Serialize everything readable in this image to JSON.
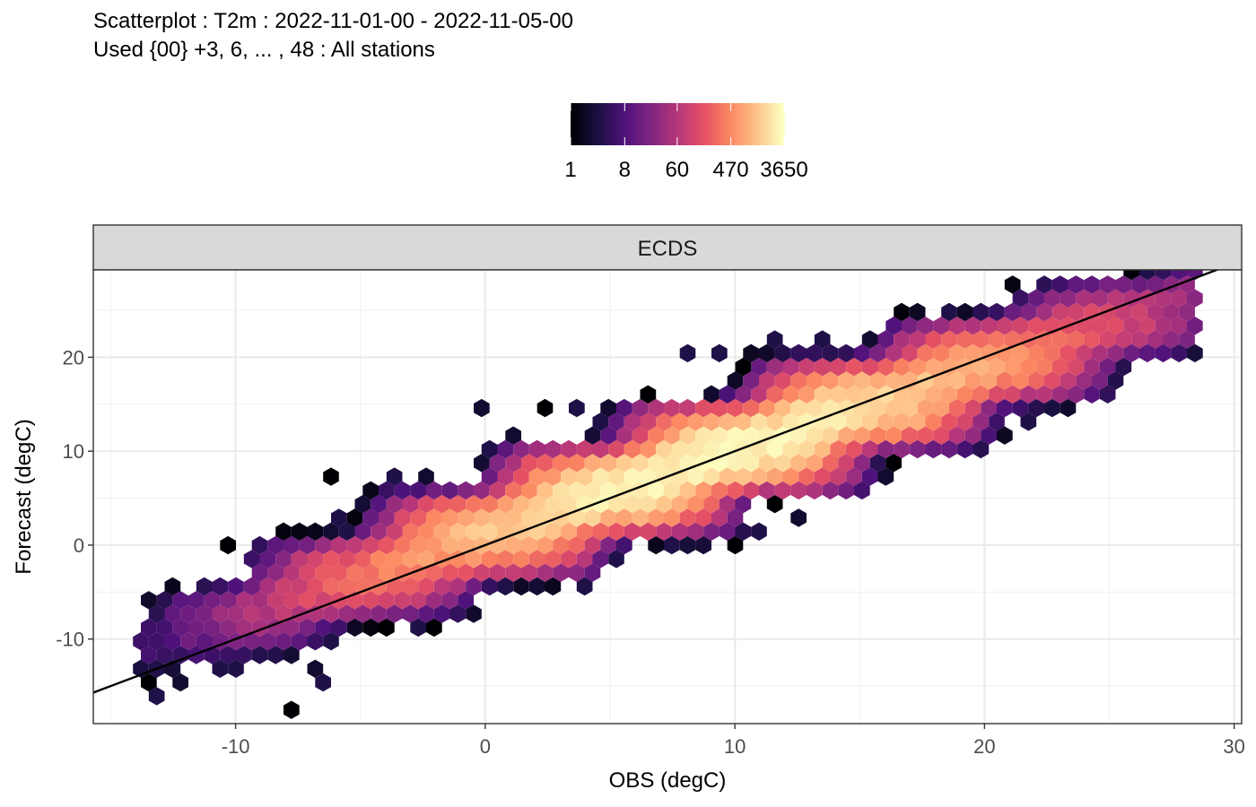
{
  "title": "Scatterplot : T2m : 2022-11-01-00 - 2022-11-05-00",
  "subtitle": "Used {00} +3, 6, ... , 48 : All stations",
  "chart_data": {
    "type": "heatmap",
    "subtype": "hexbin",
    "title": "Scatterplot : T2m : 2022-11-01-00 - 2022-11-05-00",
    "subtitle": "Used {00} +3, 6, ... , 48 : All stations",
    "panel": "ECDS",
    "xlabel": "OBS (degC)",
    "ylabel": "Forecast (degC)",
    "xlim": [
      -15.7,
      30.3
    ],
    "ylim": [
      -19,
      29.3
    ],
    "xticks": [
      -10,
      0,
      10,
      20,
      30
    ],
    "yticks": [
      -10,
      0,
      10,
      20
    ],
    "xtick_labels": [
      "-10",
      "0",
      "10",
      "20",
      "30"
    ],
    "ytick_labels": [
      "-10",
      "0",
      "10",
      "20"
    ],
    "grid": true,
    "legend": {
      "position": "top",
      "scale": "log",
      "min": 1,
      "max": 3650,
      "ticks": [
        1,
        8,
        60,
        470,
        3650
      ],
      "tick_labels": [
        "1",
        "8",
        "60",
        "470",
        "3650"
      ],
      "colormap": "magma",
      "colors": [
        "#000004",
        "#1c1044",
        "#4f127b",
        "#812581",
        "#b5367a",
        "#e55064",
        "#fb8761",
        "#fec287",
        "#fcfdbf"
      ]
    },
    "reference_line": {
      "slope": 1,
      "intercept": 0,
      "color": "#000000"
    },
    "distribution": {
      "slope": 0.92,
      "intercept": 0.9,
      "center": [
        9,
        9.2
      ],
      "spread_along": 8.5,
      "spread_across": 1.6,
      "peak_count": 3650,
      "x_range": [
        -14,
        28.5
      ]
    },
    "outliers": [
      [
        -13.2,
        -15
      ],
      [
        -12.4,
        -15
      ],
      [
        -13.2,
        -16.2
      ],
      [
        -10.5,
        -13.5
      ],
      [
        -9.8,
        -12.5
      ],
      [
        -7.8,
        -17
      ],
      [
        -7,
        -13.5
      ],
      [
        -6.4,
        -14
      ],
      [
        -6.4,
        6.8
      ],
      [
        -10,
        -4
      ],
      [
        -10.5,
        0
      ],
      [
        -8.2,
        -2
      ],
      [
        -8.2,
        -6.5
      ],
      [
        -7.2,
        -4
      ],
      [
        -3.8,
        6.8
      ],
      [
        -4.8,
        4
      ],
      [
        -5.6,
        2.2
      ],
      [
        -2.2,
        7.8
      ],
      [
        -4,
        -8
      ],
      [
        -2.8,
        -9.2
      ],
      [
        -1.8,
        -6.8
      ],
      [
        -0.4,
        -7.3
      ],
      [
        0,
        14.5
      ],
      [
        1.4,
        11.5
      ],
      [
        2.2,
        15.2
      ],
      [
        3.8,
        14.5
      ],
      [
        4.6,
        13.7
      ],
      [
        5.2,
        14.2
      ],
      [
        6.4,
        15.7
      ],
      [
        9.2,
        20.9
      ],
      [
        8.4,
        19.8
      ],
      [
        10.6,
        19.2
      ],
      [
        11.4,
        22.4
      ],
      [
        12.8,
        18.5
      ],
      [
        13.6,
        21.3
      ],
      [
        5,
        -1.8
      ],
      [
        3.8,
        -4
      ],
      [
        2.2,
        -3.3
      ],
      [
        7.6,
        0.7
      ],
      [
        8.4,
        3.4
      ],
      [
        10.8,
        2
      ],
      [
        12.6,
        3.4
      ],
      [
        14.4,
        5.2
      ],
      [
        14.4,
        6.8
      ],
      [
        16,
        7.7
      ],
      [
        16.4,
        9.2
      ],
      [
        17.6,
        10.5
      ],
      [
        20.6,
        11.5
      ],
      [
        21.8,
        13.5
      ],
      [
        19.2,
        23.6
      ],
      [
        20.4,
        24.2
      ],
      [
        21.2,
        24.8
      ],
      [
        22.4,
        24.1
      ],
      [
        23.6,
        25.7
      ],
      [
        24.6,
        26.4
      ],
      [
        25.8,
        27
      ],
      [
        26.6,
        26.4
      ],
      [
        27.4,
        25.7
      ],
      [
        27.8,
        22.4
      ],
      [
        27,
        24.8
      ],
      [
        24.8,
        23.3
      ],
      [
        22.6,
        16.3
      ],
      [
        23.8,
        20.6
      ],
      [
        25.2,
        22.6
      ],
      [
        18.4,
        13.1
      ]
    ]
  }
}
